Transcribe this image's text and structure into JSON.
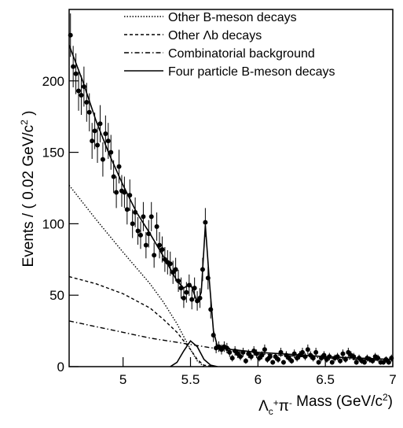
{
  "chart_data": {
    "type": "scatter",
    "x_label": [
      "Λ",
      "c",
      "+",
      "π",
      "-",
      " Mass (GeV/c",
      "2",
      ")"
    ],
    "y_label": [
      "Events / ( 0.02 GeV/c",
      "2",
      " )"
    ],
    "xlim": [
      4.6,
      7.0
    ],
    "ylim": [
      0,
      250
    ],
    "xticks": [
      5,
      5.5,
      6,
      6.5,
      7
    ],
    "yticks": [
      0,
      50,
      100,
      150,
      200
    ],
    "legend": "upper right",
    "series": [
      {
        "type": "errorbar",
        "color": "#000000",
        "x": [
          4.61,
          4.63,
          4.65,
          4.67,
          4.69,
          4.71,
          4.73,
          4.75,
          4.77,
          4.79,
          4.81,
          4.83,
          4.85,
          4.87,
          4.89,
          4.91,
          4.93,
          4.95,
          4.97,
          4.99,
          5.01,
          5.03,
          5.05,
          5.07,
          5.09,
          5.11,
          5.13,
          5.15,
          5.17,
          5.19,
          5.21,
          5.23,
          5.25,
          5.27,
          5.29,
          5.31,
          5.33,
          5.35,
          5.37,
          5.39,
          5.41,
          5.43,
          5.45,
          5.47,
          5.49,
          5.51,
          5.53,
          5.55,
          5.57,
          5.59,
          5.61,
          5.63,
          5.65,
          5.67,
          5.69,
          5.71,
          5.73,
          5.75,
          5.77,
          5.79,
          5.81,
          5.83,
          5.85,
          5.87,
          5.89,
          5.91,
          5.93,
          5.95,
          5.97,
          5.99,
          6.01,
          6.03,
          6.05,
          6.07,
          6.09,
          6.11,
          6.13,
          6.15,
          6.17,
          6.19,
          6.21,
          6.23,
          6.25,
          6.27,
          6.29,
          6.31,
          6.33,
          6.35,
          6.37,
          6.39,
          6.41,
          6.43,
          6.45,
          6.47,
          6.49,
          6.51,
          6.53,
          6.55,
          6.57,
          6.59,
          6.61,
          6.63,
          6.65,
          6.67,
          6.69,
          6.71,
          6.73,
          6.75,
          6.77,
          6.79,
          6.81,
          6.83,
          6.85,
          6.87,
          6.89,
          6.91,
          6.93,
          6.95,
          6.97,
          6.99
        ],
        "values": [
          232,
          210,
          205,
          193,
          190,
          196,
          185,
          178,
          158,
          165,
          155,
          170,
          145,
          163,
          158,
          150,
          133,
          122,
          140,
          123,
          122,
          110,
          120,
          100,
          108,
          95,
          92,
          105,
          85,
          93,
          105,
          78,
          98,
          85,
          82,
          75,
          73,
          72,
          66,
          68,
          60,
          55,
          48,
          52,
          57,
          47,
          55,
          46,
          48,
          68,
          101,
          62,
          40,
          22,
          13,
          14,
          12,
          14,
          13,
          10,
          6,
          11,
          9,
          7,
          10,
          4,
          9,
          7,
          11,
          9,
          6,
          8,
          12,
          5,
          7,
          3,
          7,
          5,
          10,
          3,
          8,
          6,
          4,
          9,
          6,
          8,
          10,
          7,
          12,
          8,
          6,
          10,
          3,
          6,
          8,
          5,
          7,
          3,
          6,
          7,
          4,
          9,
          5,
          10,
          8,
          7,
          3,
          6,
          4,
          3,
          6,
          5,
          4,
          7,
          6,
          3,
          3,
          5,
          3,
          6
        ],
        "errors": [
          15.2,
          14.5,
          14.3,
          13.9,
          13.8,
          14,
          13.6,
          13.3,
          12.6,
          12.8,
          12.4,
          13,
          12,
          12.8,
          12.6,
          12.2,
          11.5,
          11,
          11.8,
          11.1,
          11,
          10.5,
          11,
          10,
          10.4,
          9.7,
          9.6,
          10.2,
          9.2,
          9.6,
          10.2,
          8.8,
          9.9,
          9.2,
          9.1,
          8.7,
          8.5,
          8.5,
          8.1,
          8.2,
          7.7,
          7.4,
          6.9,
          7.2,
          7.5,
          6.9,
          7.4,
          6.8,
          6.9,
          8.2,
          10,
          7.9,
          6.3,
          4.7,
          3.6,
          3.7,
          3.5,
          3.7,
          3.6,
          3.2,
          2.4,
          3.3,
          3,
          2.6,
          3.2,
          2,
          3,
          2.6,
          3.3,
          3,
          2.4,
          2.8,
          3.5,
          2.2,
          2.6,
          1.7,
          2.6,
          2.2,
          3.2,
          1.7,
          2.8,
          2.4,
          2,
          3,
          2.4,
          2.8,
          3.2,
          2.6,
          3.5,
          2.8,
          2.4,
          3.2,
          1.7,
          2.4,
          2.8,
          2.2,
          2.6,
          1.7,
          2.4,
          2.6,
          2,
          3,
          2.2,
          3.2,
          2.8,
          2.6,
          1.7,
          2.4,
          2,
          1.7,
          2.4,
          2.2,
          2,
          2.6,
          2.4,
          1.7,
          1.7,
          2.2,
          1.7,
          2.4
        ]
      },
      {
        "type": "line",
        "name": "Other B-meson decays",
        "dash": "dotted",
        "color": "#000000",
        "x": [
          4.6,
          4.8,
          5.0,
          5.2,
          5.3,
          5.4,
          5.5,
          5.55,
          5.6
        ],
        "values": [
          127,
          103,
          80,
          58,
          45,
          30,
          12,
          4,
          0
        ]
      },
      {
        "type": "line",
        "name": "Other Λb decays",
        "dash": "dashed",
        "color": "#000000",
        "x": [
          4.6,
          4.8,
          5.0,
          5.2,
          5.3,
          5.4,
          5.5,
          5.55,
          5.6,
          5.7
        ],
        "values": [
          63,
          58,
          51,
          41,
          33,
          24,
          12,
          5,
          1,
          0
        ]
      },
      {
        "type": "line",
        "name": "Combinatorial background",
        "dash": "dashdot",
        "color": "#000000",
        "x": [
          4.6,
          4.8,
          5.0,
          5.2,
          5.4,
          5.6,
          5.8,
          6.0,
          6.5,
          7.0
        ],
        "values": [
          32,
          28,
          24,
          20,
          17,
          14,
          11,
          9,
          6,
          4
        ]
      },
      {
        "type": "line",
        "name": "Four particle B-meson decays",
        "dash": "solid",
        "color": "#000000",
        "x": [
          5.35,
          5.4,
          5.45,
          5.5,
          5.55,
          5.6,
          5.65,
          5.7
        ],
        "values": [
          0,
          3,
          11,
          18,
          14,
          5,
          1,
          0
        ]
      },
      {
        "type": "line",
        "dash": "solid",
        "color": "#000000",
        "x": [
          4.6,
          4.7,
          4.8,
          4.9,
          5.0,
          5.1,
          5.2,
          5.3,
          5.4,
          5.45,
          5.5,
          5.55,
          5.58,
          5.61,
          5.64,
          5.67,
          5.7,
          5.8,
          6.0,
          6.5,
          7.0
        ],
        "values": [
          225,
          200,
          172,
          148,
          127,
          108,
          93,
          77,
          60,
          55,
          58,
          45,
          52,
          99,
          60,
          25,
          14,
          12,
          10,
          7,
          5
        ]
      }
    ]
  }
}
